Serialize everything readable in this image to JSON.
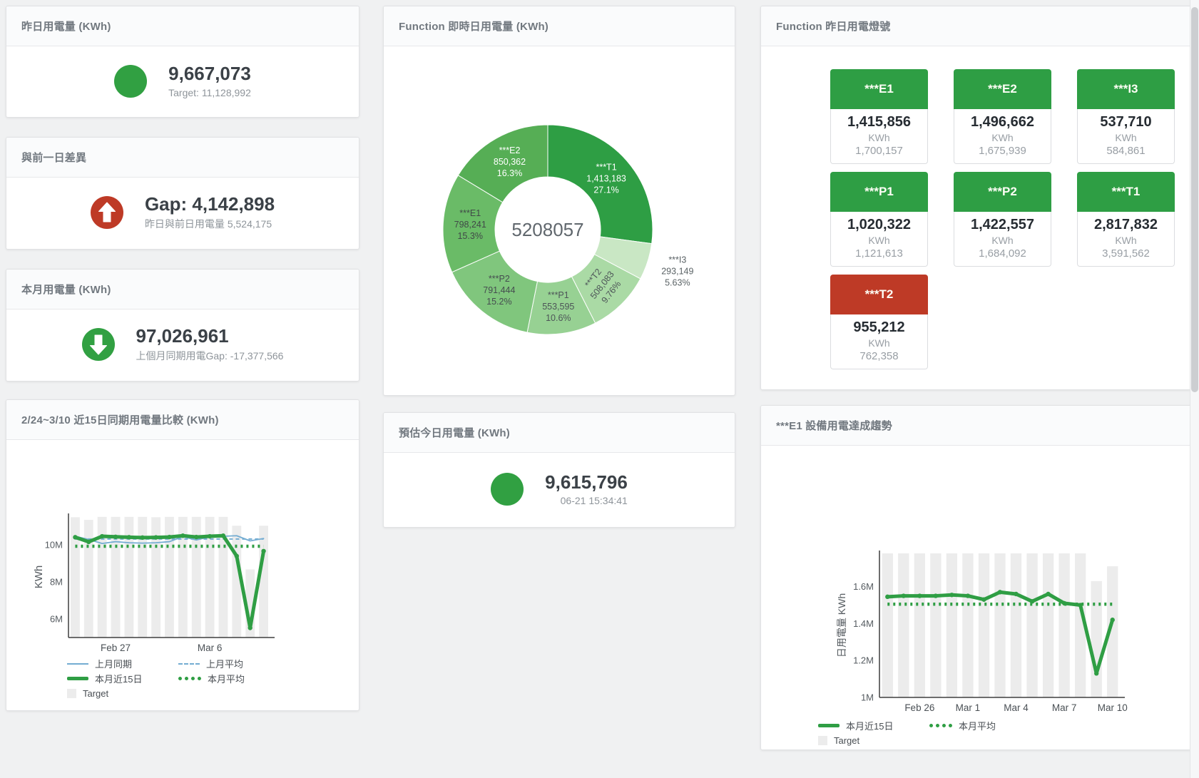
{
  "colors": {
    "green": "#31A042",
    "red": "#BE3A26",
    "tile_green": "#2E9E44",
    "tile_red": "#BE3A26",
    "line_green": "#2F9E44",
    "line_blue": "#74ADD2",
    "target_bar": "#ECECEC",
    "page_bg": "#F0F1F2"
  },
  "panels": {
    "yesterday": {
      "title": "昨日用電量 (KWh)",
      "value": "9,667,073",
      "sub": "Target: 11,128,992"
    },
    "gap": {
      "title": "與前一日差異",
      "value": "Gap: 4,142,898",
      "sub": "昨日與前日用電量 5,524,175"
    },
    "month": {
      "title": "本月用電量 (KWh)",
      "value": "97,026,961",
      "sub": "上個月同期用電Gap: -17,377,566"
    },
    "estimate": {
      "title": "預估今日用電量 (KWh)",
      "value": "9,615,796",
      "sub": "06-21 15:34:41"
    },
    "donut": {
      "title": "Function 即時日用電量 (KWh)"
    },
    "lights": {
      "title": "Function 昨日用電燈號",
      "tiles": [
        {
          "label": "***E1",
          "value": "1,415,856",
          "unit": "KWh",
          "target": "1,700,157",
          "status": "green"
        },
        {
          "label": "***E2",
          "value": "1,496,662",
          "unit": "KWh",
          "target": "1,675,939",
          "status": "green"
        },
        {
          "label": "***I3",
          "value": "537,710",
          "unit": "KWh",
          "target": "584,861",
          "status": "green"
        },
        {
          "label": "***P1",
          "value": "1,020,322",
          "unit": "KWh",
          "target": "1,121,613",
          "status": "green"
        },
        {
          "label": "***P2",
          "value": "1,422,557",
          "unit": "KWh",
          "target": "1,684,092",
          "status": "green"
        },
        {
          "label": "***T1",
          "value": "2,817,832",
          "unit": "KWh",
          "target": "3,591,562",
          "status": "green"
        },
        {
          "label": "***T2",
          "value": "955,212",
          "unit": "KWh",
          "target": "762,358",
          "status": "red"
        }
      ]
    },
    "compare": {
      "title": "2/24~3/10 近15日同期用電量比較 (KWh)"
    },
    "trend": {
      "title": "***E1 設備用電達成趨勢"
    }
  },
  "chart_data": [
    {
      "id": "realtime_donut",
      "type": "pie",
      "title": "Function 即時日用電量 (KWh)",
      "center_total": "5208057",
      "slices": [
        {
          "label": "***T1",
          "value": 1413183,
          "value_label": "1,413,183",
          "pct": "27.1%",
          "color": "#2E9E44",
          "text_color": "#FFFFFF"
        },
        {
          "label": "***I3",
          "value": 293149,
          "value_label": "293,149",
          "pct": "5.63%",
          "color": "#C9E7C4",
          "text_color": "#5B6366",
          "outside": true
        },
        {
          "label": "***T2",
          "value": 508083,
          "value_label": "508,083",
          "pct": "9.76%",
          "color": "#AADAA5",
          "text_color": "#4D5558",
          "rotate": -52
        },
        {
          "label": "***P1",
          "value": 553595,
          "value_label": "553,595",
          "pct": "10.6%",
          "color": "#97D193",
          "text_color": "#4D5558"
        },
        {
          "label": "***P2",
          "value": 791444,
          "value_label": "791,444",
          "pct": "15.2%",
          "color": "#80C67D",
          "text_color": "#454D50"
        },
        {
          "label": "***E1",
          "value": 798241,
          "value_label": "798,241",
          "pct": "15.3%",
          "color": "#6ABB67",
          "text_color": "#414948"
        },
        {
          "label": "***E2",
          "value": 850362,
          "value_label": "850,362",
          "pct": "16.3%",
          "color": "#56AE55",
          "text_color": "#FFFFFF"
        }
      ]
    },
    {
      "id": "compare15",
      "type": "line+bar",
      "title": "2/24~3/10 近15日同期用電量比較 (KWh)",
      "x": [
        "2/24",
        "2/25",
        "2/26",
        "2/27",
        "2/28",
        "3/1",
        "3/2",
        "3/3",
        "3/4",
        "3/5",
        "3/6",
        "3/7",
        "3/8",
        "3/9",
        "3/10"
      ],
      "xticks": [
        {
          "i": 3,
          "label": "Feb 27"
        },
        {
          "i": 10,
          "label": "Mar 6"
        }
      ],
      "ylabel": "KWh",
      "unit": "M KWh",
      "ylim": [
        5.0,
        11.55
      ],
      "yticks": [
        {
          "v": 6,
          "label": "6M"
        },
        {
          "v": 8,
          "label": "8M"
        },
        {
          "v": 10,
          "label": "10M"
        }
      ],
      "grid": false,
      "legend_position": "bottom-left",
      "target": {
        "name": "Target",
        "values": [
          11.5,
          11.36,
          11.52,
          11.52,
          11.52,
          11.52,
          11.5,
          11.52,
          11.52,
          11.52,
          11.52,
          11.52,
          11.04,
          8.68,
          11.04
        ]
      },
      "series": [
        {
          "name": "上月同期",
          "style": "blue",
          "values": [
            10.47,
            10.3,
            10.08,
            10.18,
            10.12,
            10.1,
            10.12,
            10.18,
            10.45,
            10.27,
            10.44,
            10.47,
            10.5,
            10.22,
            10.35
          ]
        },
        {
          "name": "上月平均",
          "style": "blue-dash",
          "values": [
            10.32,
            10.32,
            10.32,
            10.32,
            10.32,
            10.32,
            10.32,
            10.32,
            10.32,
            10.32,
            10.32,
            10.32,
            10.32,
            10.32,
            10.32
          ]
        },
        {
          "name": "本月近15日",
          "style": "green-thick",
          "values": [
            10.42,
            10.17,
            10.47,
            10.44,
            10.42,
            10.4,
            10.41,
            10.43,
            10.5,
            10.43,
            10.47,
            10.5,
            9.4,
            5.52,
            9.67
          ]
        },
        {
          "name": "本月平均",
          "style": "green-dot",
          "values": [
            9.93,
            9.93,
            9.93,
            9.93,
            9.93,
            9.93,
            9.93,
            9.93,
            9.93,
            9.93,
            9.93,
            9.93,
            9.93,
            9.93,
            9.93
          ]
        }
      ],
      "legend": [
        [
          {
            "style": "blue",
            "label": "上月同期"
          },
          {
            "style": "blue-dash",
            "label": "上月平均"
          }
        ],
        [
          {
            "style": "green-thick",
            "label": "本月近15日"
          },
          {
            "style": "green-dot",
            "label": "本月平均"
          }
        ],
        [
          {
            "style": "target",
            "label": "Target"
          }
        ]
      ]
    },
    {
      "id": "e1_trend",
      "type": "line+bar",
      "title": "***E1 設備用電達成趨勢",
      "x": [
        "2/24",
        "2/25",
        "2/26",
        "2/27",
        "2/28",
        "3/1",
        "3/2",
        "3/3",
        "3/4",
        "3/5",
        "3/6",
        "3/7",
        "3/8",
        "3/9",
        "3/10"
      ],
      "xticks": [
        {
          "i": 2,
          "label": "Feb 26"
        },
        {
          "i": 5,
          "label": "Mar 1"
        },
        {
          "i": 8,
          "label": "Mar 4"
        },
        {
          "i": 11,
          "label": "Mar 7"
        },
        {
          "i": 14,
          "label": "Mar 10"
        }
      ],
      "ylabel": "日用電量 KWh",
      "unit": "M KWh",
      "ylim": [
        1.0,
        1.78
      ],
      "yticks": [
        {
          "v": 1,
          "label": "1M"
        },
        {
          "v": 1.2,
          "label": "1.2M"
        },
        {
          "v": 1.4,
          "label": "1.4M"
        },
        {
          "v": 1.6,
          "label": "1.6M"
        }
      ],
      "grid": false,
      "legend_position": "bottom-left",
      "target": {
        "name": "Target",
        "values": [
          1.78,
          1.78,
          1.78,
          1.78,
          1.78,
          1.78,
          1.78,
          1.78,
          1.78,
          1.78,
          1.78,
          1.78,
          1.78,
          1.63,
          1.71
        ]
      },
      "series": [
        {
          "name": "本月近15日",
          "style": "green-thick",
          "values": [
            1.545,
            1.55,
            1.55,
            1.55,
            1.555,
            1.55,
            1.53,
            1.57,
            1.56,
            1.52,
            1.56,
            1.51,
            1.5,
            1.13,
            1.42
          ]
        },
        {
          "name": "本月平均",
          "style": "green-dot",
          "values": [
            1.505,
            1.505,
            1.505,
            1.505,
            1.505,
            1.505,
            1.505,
            1.505,
            1.505,
            1.505,
            1.505,
            1.505,
            1.505,
            1.505,
            1.505
          ]
        }
      ],
      "legend": [
        [
          {
            "style": "green-thick",
            "label": "本月近15日"
          },
          {
            "style": "green-dot",
            "label": "本月平均"
          }
        ],
        [
          {
            "style": "target",
            "label": "Target"
          }
        ]
      ]
    }
  ]
}
